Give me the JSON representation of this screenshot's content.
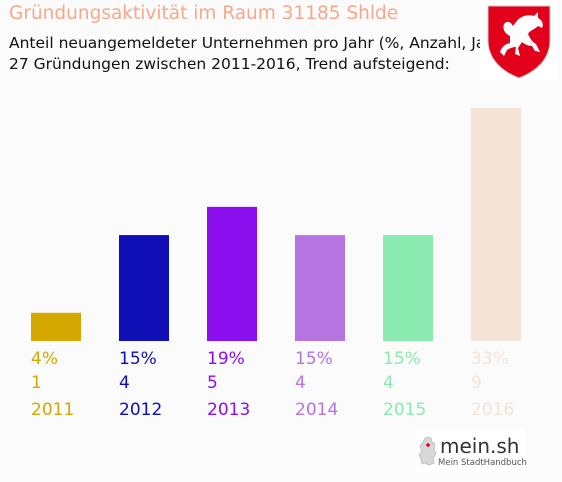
{
  "header": {
    "title": "Gründungsaktivität im Raum 31185 Shlde",
    "subtitle_line1": "Anteil neuangemeldeter Unternehmen pro Jahr (%, Anzahl, Jahr)",
    "subtitle_line2": "27 Gründungen zwischen 2011-2016, Trend aufsteigend:"
  },
  "brand": {
    "name": "mein.sh",
    "tagline": "Mein StadtHandbuch"
  },
  "colors": {
    "title": "#f5a98a",
    "coat_red": "#e3001b"
  },
  "chart_data": {
    "type": "bar",
    "categories": [
      "2011",
      "2012",
      "2013",
      "2014",
      "2015",
      "2016"
    ],
    "values": [
      4,
      15,
      19,
      15,
      15,
      33
    ],
    "percent_labels": [
      "4%",
      "15%",
      "19%",
      "15%",
      "15%",
      "33%"
    ],
    "counts": [
      "1",
      "4",
      "5",
      "4",
      "4",
      "9"
    ],
    "colors": [
      "#d4a800",
      "#0f0fb5",
      "#8c0ff0",
      "#b574e0",
      "#8aeab0",
      "#f4e4d8"
    ],
    "title": "Gründungsaktivität im Raum 31185 Shlde",
    "ylim": [
      0,
      33
    ],
    "grid": false
  }
}
